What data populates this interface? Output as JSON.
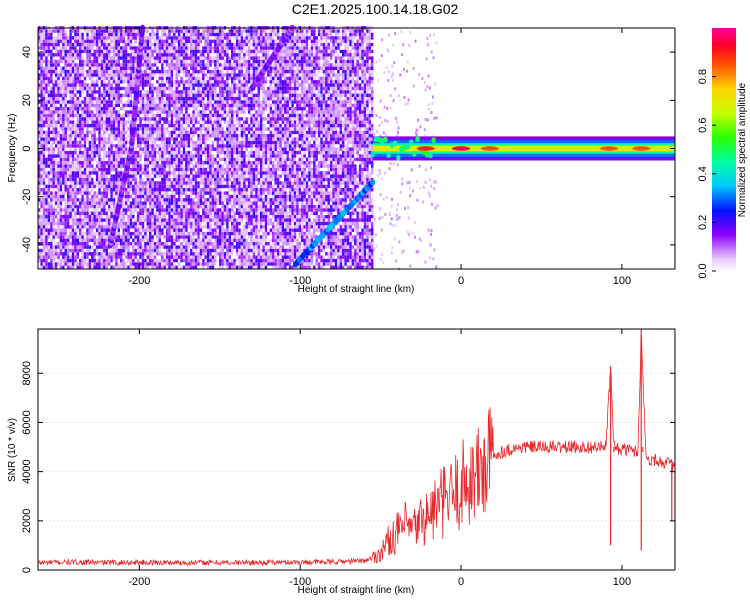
{
  "title": "C2E1.2025.100.14.18.G02",
  "colors": {
    "snr_line": "#e8282a",
    "grid": "#c8c8c8"
  },
  "chart_data": [
    {
      "type": "heatmap",
      "panel": "top",
      "xlabel": "Height of straight line (km)",
      "ylabel": "Frequency (Hz)",
      "xlim": [
        -263,
        133
      ],
      "ylim": [
        -50,
        50
      ],
      "x_ticks": [
        -200,
        -100,
        0,
        100
      ],
      "x_tick_labels": [
        "-200",
        "-100",
        "0",
        "100"
      ],
      "y_ticks": [
        -40,
        -20,
        0,
        20,
        40
      ],
      "y_tick_labels": [
        "-40",
        "-20",
        "0",
        "20",
        "40"
      ],
      "colorbar": {
        "label": "Normalized spectral amplitude",
        "range": [
          0,
          1
        ],
        "ticks": [
          0.0,
          0.2,
          0.4,
          0.6,
          0.8
        ],
        "tick_labels": [
          "0.0",
          "0.2",
          "0.4",
          "0.6",
          "0.8"
        ],
        "colormap": "rainbow"
      },
      "features": [
        {
          "kind": "noise",
          "x_range": [
            -263,
            -55
          ],
          "amplitude": [
            0.0,
            0.2
          ]
        },
        {
          "kind": "streak",
          "points": [
            [
              -218,
              -40
            ],
            [
              -205,
              0
            ],
            [
              -198,
              50
            ]
          ],
          "amplitude": 0.15
        },
        {
          "kind": "streak",
          "points": [
            [
              -130,
              25
            ],
            [
              -105,
              50
            ]
          ],
          "amplitude": 0.15
        },
        {
          "kind": "streak",
          "points": [
            [
              -103,
              -48
            ],
            [
              -55,
              -14
            ]
          ],
          "amplitude": 0.3
        },
        {
          "kind": "tone",
          "x_range": [
            -55,
            133
          ],
          "frequency": 0,
          "amplitude": 0.7
        },
        {
          "kind": "hotspot",
          "x": 0,
          "frequency": 0,
          "amplitude": 0.95
        },
        {
          "kind": "hotspot",
          "x": -22,
          "frequency": 0,
          "amplitude": 0.9
        },
        {
          "kind": "hotspot",
          "x": 18,
          "frequency": 0,
          "amplitude": 0.85
        },
        {
          "kind": "hotspot",
          "x": 92,
          "frequency": 0,
          "amplitude": 0.85
        },
        {
          "kind": "hotspot",
          "x": 112,
          "frequency": 0,
          "amplitude": 0.85
        }
      ]
    },
    {
      "type": "line",
      "panel": "bottom",
      "xlabel": "Height of straight line (km)",
      "ylabel": "SNR (10 * v/v)",
      "xlim": [
        -263,
        133
      ],
      "ylim": [
        0,
        9800
      ],
      "x_ticks": [
        -200,
        -100,
        0,
        100
      ],
      "x_tick_labels": [
        "-200",
        "-100",
        "0",
        "100"
      ],
      "y_ticks": [
        0,
        2000,
        4000,
        6000,
        8000
      ],
      "y_tick_labels": [
        "0",
        "2000",
        "4000",
        "6000",
        "8000"
      ],
      "series": [
        {
          "x": [
            -263,
            -240,
            -220,
            -200,
            -180,
            -160,
            -140,
            -120,
            -100,
            -80,
            -60,
            -55,
            -50,
            -45,
            -40,
            -35,
            -30,
            -25,
            -20,
            -15,
            -10,
            -5,
            0,
            5,
            10,
            15,
            20,
            25,
            30,
            40,
            50,
            60,
            70,
            80,
            90,
            93,
            95,
            100,
            105,
            110,
            112,
            115,
            120,
            125,
            130,
            133
          ],
          "y": [
            300,
            320,
            300,
            310,
            300,
            300,
            300,
            310,
            320,
            330,
            380,
            500,
            700,
            1200,
            1500,
            1800,
            1600,
            2000,
            2200,
            2600,
            2800,
            3000,
            3400,
            3700,
            3800,
            4200,
            4600,
            4800,
            4900,
            5000,
            5000,
            5000,
            5000,
            5000,
            5000,
            8300,
            5000,
            4900,
            4900,
            4800,
            9800,
            4500,
            4500,
            4400,
            4300,
            4200
          ]
        }
      ]
    }
  ]
}
